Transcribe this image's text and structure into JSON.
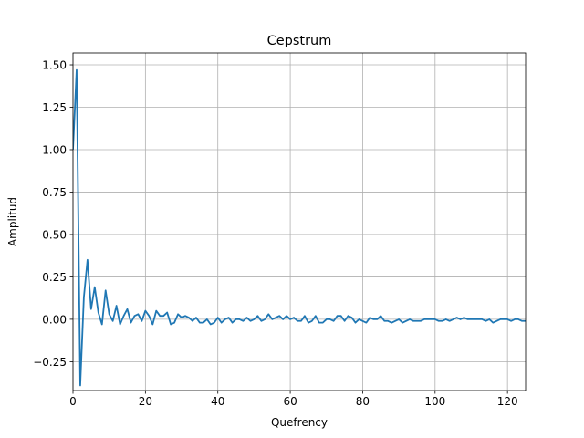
{
  "chart_data": {
    "type": "line",
    "title": "Cepstrum",
    "xlabel": "Quefrency",
    "ylabel": "Amplitud",
    "xlim": [
      0,
      125
    ],
    "ylim": [
      -0.42,
      1.57
    ],
    "xticks": [
      0,
      20,
      40,
      60,
      80,
      100,
      120
    ],
    "xtick_labels": [
      "0",
      "20",
      "40",
      "60",
      "80",
      "100",
      "120"
    ],
    "yticks": [
      -0.25,
      0.0,
      0.25,
      0.5,
      0.75,
      1.0,
      1.25,
      1.5
    ],
    "ytick_labels": [
      "−0.25",
      "0.00",
      "0.25",
      "0.50",
      "0.75",
      "1.00",
      "1.25",
      "1.50"
    ],
    "grid": true,
    "line_color": "#1f77b4",
    "grid_color": "#b0b0b0",
    "series": [
      {
        "x": [
          0,
          1,
          2,
          3,
          4,
          5,
          6,
          7,
          8,
          9,
          10,
          11,
          12,
          13,
          14,
          15,
          16,
          17,
          18,
          19,
          20,
          21,
          22,
          23,
          24,
          25,
          26,
          27,
          28,
          29,
          30,
          31,
          32,
          33,
          34,
          35,
          36,
          37,
          38,
          39,
          40,
          41,
          42,
          43,
          44,
          45,
          46,
          47,
          48,
          49,
          50,
          51,
          52,
          53,
          54,
          55,
          56,
          57,
          58,
          59,
          60,
          61,
          62,
          63,
          64,
          65,
          66,
          67,
          68,
          69,
          70,
          71,
          72,
          73,
          74,
          75,
          76,
          77,
          78,
          79,
          80,
          81,
          82,
          83,
          84,
          85,
          86,
          87,
          88,
          89,
          90,
          91,
          92,
          93,
          94,
          95,
          96,
          97,
          98,
          99,
          100,
          101,
          102,
          103,
          104,
          105,
          106,
          107,
          108,
          109,
          110,
          111,
          112,
          113,
          114,
          115,
          116,
          117,
          118,
          119,
          120,
          121,
          122,
          123,
          124,
          125
        ],
        "values": [
          1.0,
          1.47,
          -0.39,
          0.13,
          0.35,
          0.06,
          0.19,
          0.04,
          -0.03,
          0.17,
          0.03,
          -0.01,
          0.08,
          -0.03,
          0.02,
          0.06,
          -0.02,
          0.02,
          0.03,
          -0.01,
          0.05,
          0.02,
          -0.03,
          0.05,
          0.02,
          0.02,
          0.04,
          -0.03,
          -0.02,
          0.03,
          0.01,
          0.02,
          0.01,
          -0.01,
          0.01,
          -0.02,
          -0.02,
          0.0,
          -0.03,
          -0.02,
          0.01,
          -0.02,
          0.0,
          0.01,
          -0.02,
          0.0,
          0.0,
          -0.01,
          0.01,
          -0.01,
          0.0,
          0.02,
          -0.01,
          0.0,
          0.03,
          0.0,
          0.01,
          0.02,
          0.0,
          0.02,
          0.0,
          0.01,
          -0.01,
          -0.01,
          0.02,
          -0.02,
          -0.01,
          0.02,
          -0.02,
          -0.02,
          0.0,
          0.0,
          -0.01,
          0.02,
          0.02,
          -0.01,
          0.02,
          0.01,
          -0.02,
          0.0,
          -0.01,
          -0.02,
          0.01,
          0.0,
          0.0,
          0.02,
          -0.01,
          -0.01,
          -0.02,
          -0.01,
          0.0,
          -0.02,
          -0.01,
          0.0,
          -0.01,
          -0.01,
          -0.01,
          0.0,
          0.0,
          0.0,
          0.0,
          -0.01,
          -0.01,
          0.0,
          -0.01,
          0.0,
          0.01,
          0.0,
          0.01,
          0.0,
          0.0,
          0.0,
          0.0,
          0.0,
          -0.01,
          0.0,
          -0.02,
          -0.01,
          0.0,
          0.0,
          0.0,
          -0.01,
          0.0,
          0.0,
          -0.01,
          -0.01
        ]
      }
    ]
  }
}
